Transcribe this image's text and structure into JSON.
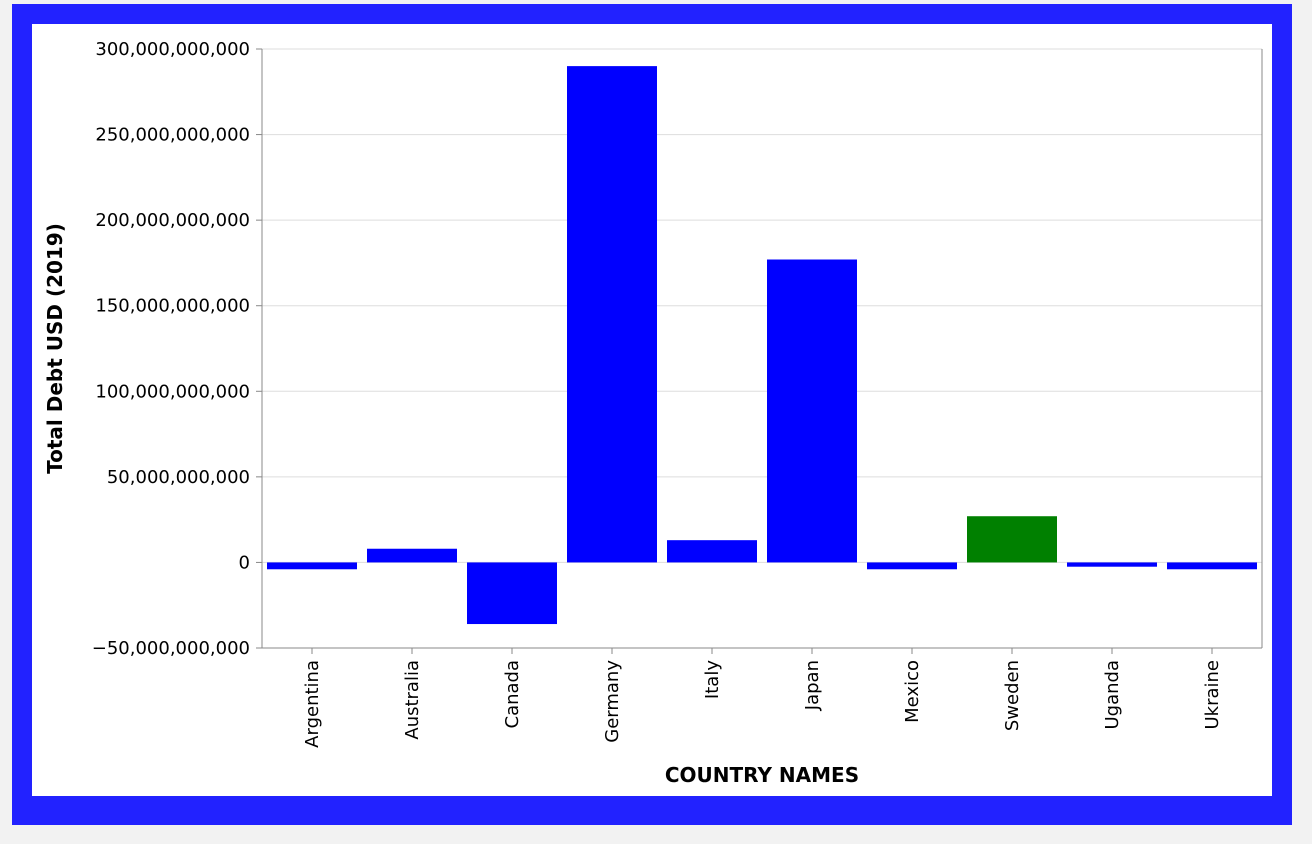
{
  "frame_color": "#2222ff",
  "chart_data": {
    "type": "bar",
    "title": "",
    "xlabel": "COUNTRY NAMES",
    "ylabel": "Total Debt USD (2019)",
    "categories": [
      "Argentina",
      "Australia",
      "Canada",
      "Germany",
      "Italy",
      "Japan",
      "Mexico",
      "Sweden",
      "Uganda",
      "Ukraine"
    ],
    "values": [
      -4000000000,
      8000000000,
      -36000000000,
      290000000000,
      13000000000,
      177000000000,
      -4000000000,
      27000000000,
      -2500000000,
      -4000000000
    ],
    "bar_colors": [
      "#0000ff",
      "#0000ff",
      "#0000ff",
      "#0000ff",
      "#0000ff",
      "#0000ff",
      "#0000ff",
      "#008000",
      "#0000ff",
      "#0000ff"
    ],
    "ylim": [
      -50000000000,
      300000000000
    ],
    "yticks": [
      -50000000000,
      0,
      50000000000,
      100000000000,
      150000000000,
      200000000000,
      250000000000,
      300000000000
    ],
    "ytick_labels": [
      "−50,000,000,000",
      "0",
      "50,000,000,000",
      "100,000,000,000",
      "150,000,000,000",
      "200,000,000,000",
      "250,000,000,000",
      "300,000,000,000"
    ],
    "grid": true,
    "legend": "none"
  }
}
